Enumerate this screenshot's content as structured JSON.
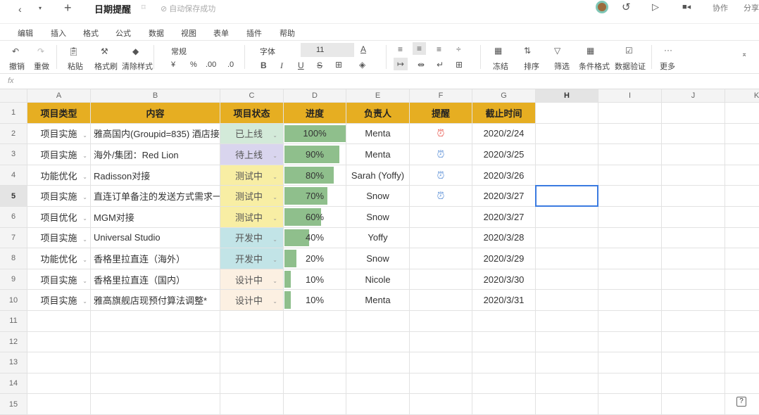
{
  "topbar": {
    "title": "日期提醒",
    "saved": "自动保存成功",
    "collab": "协作",
    "share": "分享"
  },
  "menu": [
    "编辑",
    "插入",
    "格式",
    "公式",
    "数据",
    "视图",
    "表单",
    "插件",
    "帮助"
  ],
  "toolbar": {
    "undo": "撤销",
    "redo": "重做",
    "paste": "粘贴",
    "format_painter": "格式刷",
    "clear_format": "清除样式",
    "number_format": "常规",
    "currency": "¥",
    "percent": "%",
    "inc_decimal": ".00",
    "dec_decimal": ".0",
    "font": "字体",
    "font_size": "11",
    "freeze": "冻结",
    "sort": "排序",
    "filter": "筛选",
    "cond_format": "条件格式",
    "data_validation": "数据验证",
    "more": "更多"
  },
  "formula_bar": {
    "fx": "fx"
  },
  "columns": [
    "A",
    "B",
    "C",
    "D",
    "E",
    "F",
    "G",
    "H",
    "I",
    "J",
    "K"
  ],
  "header": [
    "项目类型",
    "内容",
    "项目状态",
    "进度",
    "负责人",
    "提醒",
    "截止时间"
  ],
  "status_colors": {
    "已上线": "#d3ead9",
    "待上线": "#d9d5ee",
    "测试中": "#f8eea4",
    "开发中": "#c2e4e7",
    "设计中": "#fcf0e2"
  },
  "colors": {
    "header": "#e6ae22",
    "progress": "#8fbf8c",
    "alarm_active": "#e8574e",
    "alarm": "#5b8fd6"
  },
  "rows": [
    {
      "type": "项目实施",
      "content": "雅高国内(Groupid=835) 酒店接",
      "status": "已上线",
      "progress": "100%",
      "owner": "Menta",
      "alarm": "active",
      "due": "2020/2/24"
    },
    {
      "type": "项目实施",
      "content": "海外/集团：Red Lion",
      "status": "待上线",
      "progress": "90%",
      "owner": "Menta",
      "alarm": "on",
      "due": "2020/3/25"
    },
    {
      "type": "功能优化",
      "content": "Radisson对接",
      "status": "测试中",
      "progress": "80%",
      "owner": "Sarah (Yoffy)",
      "alarm": "on",
      "due": "2020/3/26"
    },
    {
      "type": "项目实施",
      "content": "直连订单备注的发送方式需求一",
      "status": "测试中",
      "progress": "70%",
      "owner": "Snow",
      "alarm": "on",
      "due": "2020/3/27"
    },
    {
      "type": "项目优化",
      "content": "MGM对接",
      "status": "测试中",
      "progress": "60%",
      "owner": "Snow",
      "alarm": "",
      "due": "2020/3/27"
    },
    {
      "type": "项目实施",
      "content": "Universal Studio",
      "status": "开发中",
      "progress": "40%",
      "owner": "Yoffy",
      "alarm": "",
      "due": "2020/3/28"
    },
    {
      "type": "功能优化",
      "content": "香格里拉直连（海外）",
      "status": "开发中",
      "progress": "20%",
      "owner": "Snow",
      "alarm": "",
      "due": "2020/3/29"
    },
    {
      "type": "项目实施",
      "content": "香格里拉直连（国内）",
      "status": "设计中",
      "progress": "10%",
      "owner": "Nicole",
      "alarm": "",
      "due": "2020/3/30"
    },
    {
      "type": "项目实施",
      "content": "雅高旗舰店现预付算法调整*",
      "status": "设计中",
      "progress": "10%",
      "owner": "Menta",
      "alarm": "",
      "due": "2020/3/31"
    }
  ],
  "row_numbers": [
    "1",
    "2",
    "3",
    "4",
    "5",
    "6",
    "7",
    "8",
    "9",
    "10",
    "11",
    "12",
    "13",
    "14",
    "15"
  ]
}
